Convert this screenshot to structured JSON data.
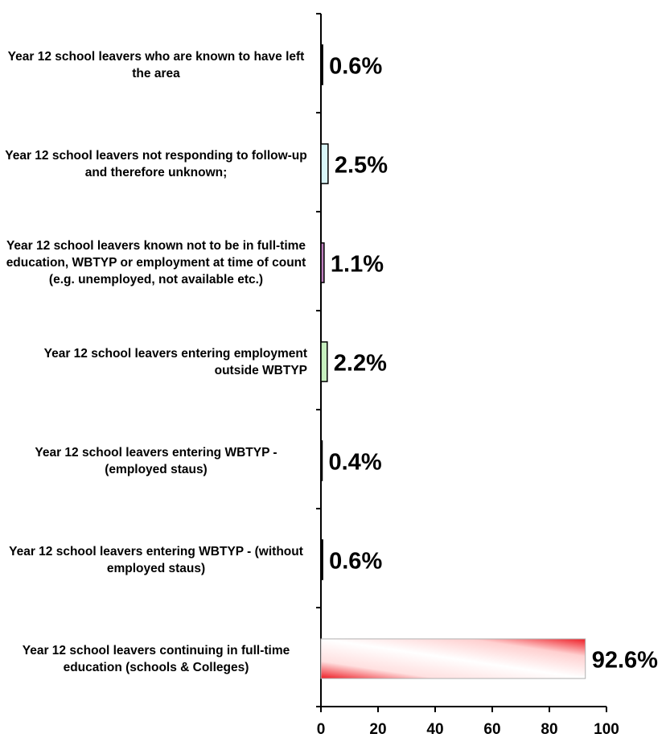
{
  "chart_data": {
    "type": "bar",
    "orientation": "horizontal",
    "categories": [
      "Year 12 school leavers who are known to have left the area",
      "Year 12 school leavers not responding to follow-up and therefore unknown;",
      "Year 12 school leavers known not to be in full-time education, WBTYP or employment at time of count (e.g. unemployed, not available etc.)",
      "Year 12 school leavers entering employment outside WBTYP",
      "Year 12 school leavers entering WBTYP - (employed staus)",
      "Year 12 school leavers entering WBTYP - (without employed staus)",
      "Year 12 school leavers continuing in full-time education (schools & Colleges)"
    ],
    "values": [
      0.6,
      2.5,
      1.1,
      2.2,
      0.4,
      0.6,
      92.6
    ],
    "data_labels": [
      "0.6%",
      "2.5%",
      "1.1%",
      "2.2%",
      "0.4%",
      "0.6%",
      "92.6%"
    ],
    "bar_colors": [
      "#000000",
      "#d9f5f7",
      "#c080c0",
      "#c8f0c0",
      "#000000",
      "#000000",
      "#ee1c24"
    ],
    "xlim": [
      0,
      100
    ],
    "xticks": [
      0,
      20,
      40,
      60,
      80,
      100
    ],
    "xtick_labels": [
      "0",
      "20",
      "40",
      "60",
      "80",
      "100"
    ],
    "grid": false,
    "legend": "none"
  }
}
